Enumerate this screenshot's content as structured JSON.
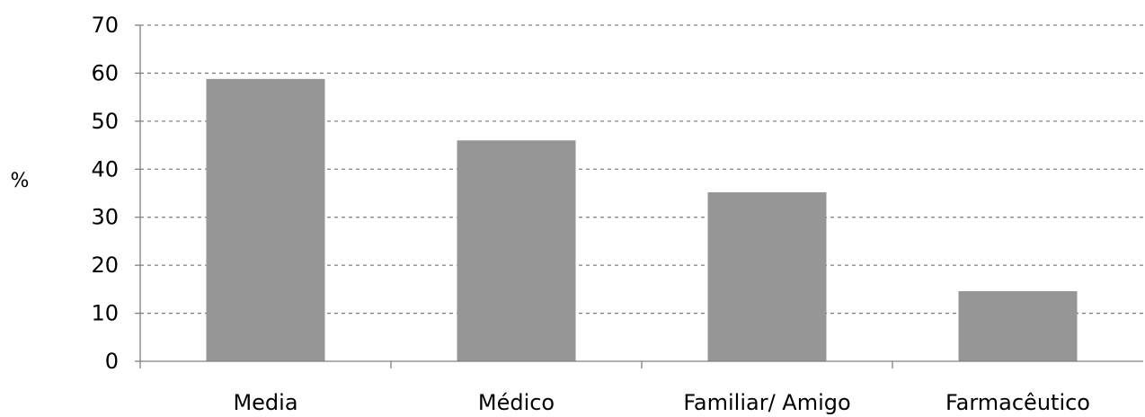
{
  "chart_data": {
    "type": "bar",
    "title": "",
    "xlabel": "",
    "ylabel": "%",
    "categories": [
      "Media",
      "Médico",
      "Familiar/ Amigo",
      "Farmacêutico"
    ],
    "values": [
      58.8,
      46.0,
      35.2,
      14.6
    ],
    "ylim": [
      0,
      70
    ],
    "yticks": [
      "0",
      "10",
      "20",
      "30",
      "40",
      "50",
      "60",
      "70"
    ],
    "grid": true,
    "bar_color": "#969696",
    "grid_color": "#808080",
    "axis_color": "#808080"
  }
}
